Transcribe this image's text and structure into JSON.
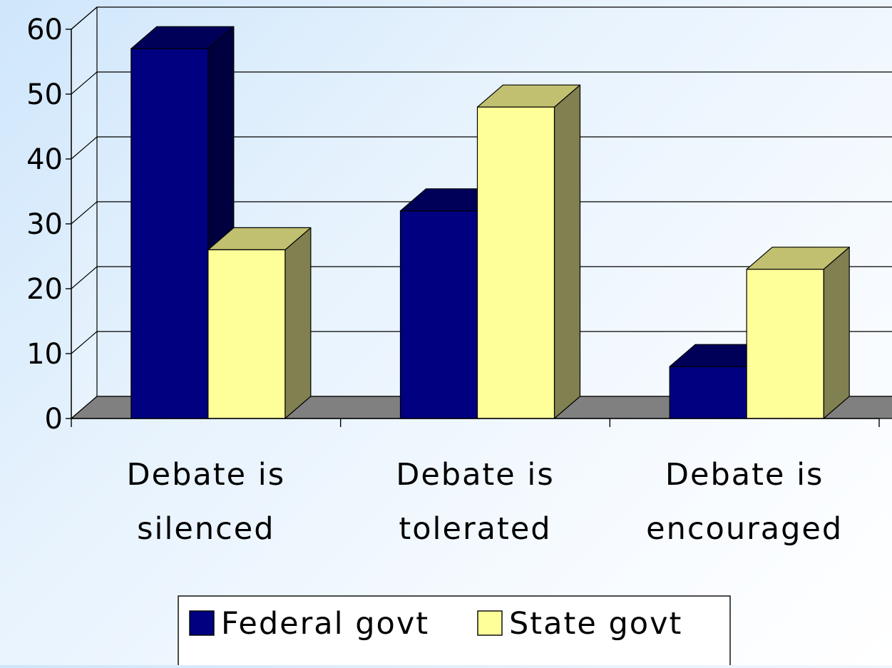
{
  "chart_data": {
    "type": "bar",
    "title": "",
    "xlabel": "",
    "ylabel": "",
    "categories": [
      [
        "Debate is",
        "silenced"
      ],
      [
        "Debate is",
        "tolerated"
      ],
      [
        "Debate is",
        "encouraged"
      ]
    ],
    "series": [
      {
        "name": "Federal govt",
        "values": [
          57,
          32,
          8
        ]
      },
      {
        "name": "State govt",
        "values": [
          26,
          48,
          23
        ]
      }
    ],
    "ylim": [
      0,
      60
    ],
    "yticks": [
      0,
      10,
      20,
      30,
      40,
      50,
      60
    ],
    "grid": true,
    "legend_position": "bottom",
    "style": "3d-clustered-column"
  },
  "colors": {
    "series": [
      {
        "front": "#000080",
        "top": "#000059",
        "side": "#000040"
      },
      {
        "front": "#ffff99",
        "top": "#c0c070",
        "side": "#808050"
      }
    ],
    "floor": "#808080",
    "wall": "#ffffff",
    "grid": "#000000"
  }
}
